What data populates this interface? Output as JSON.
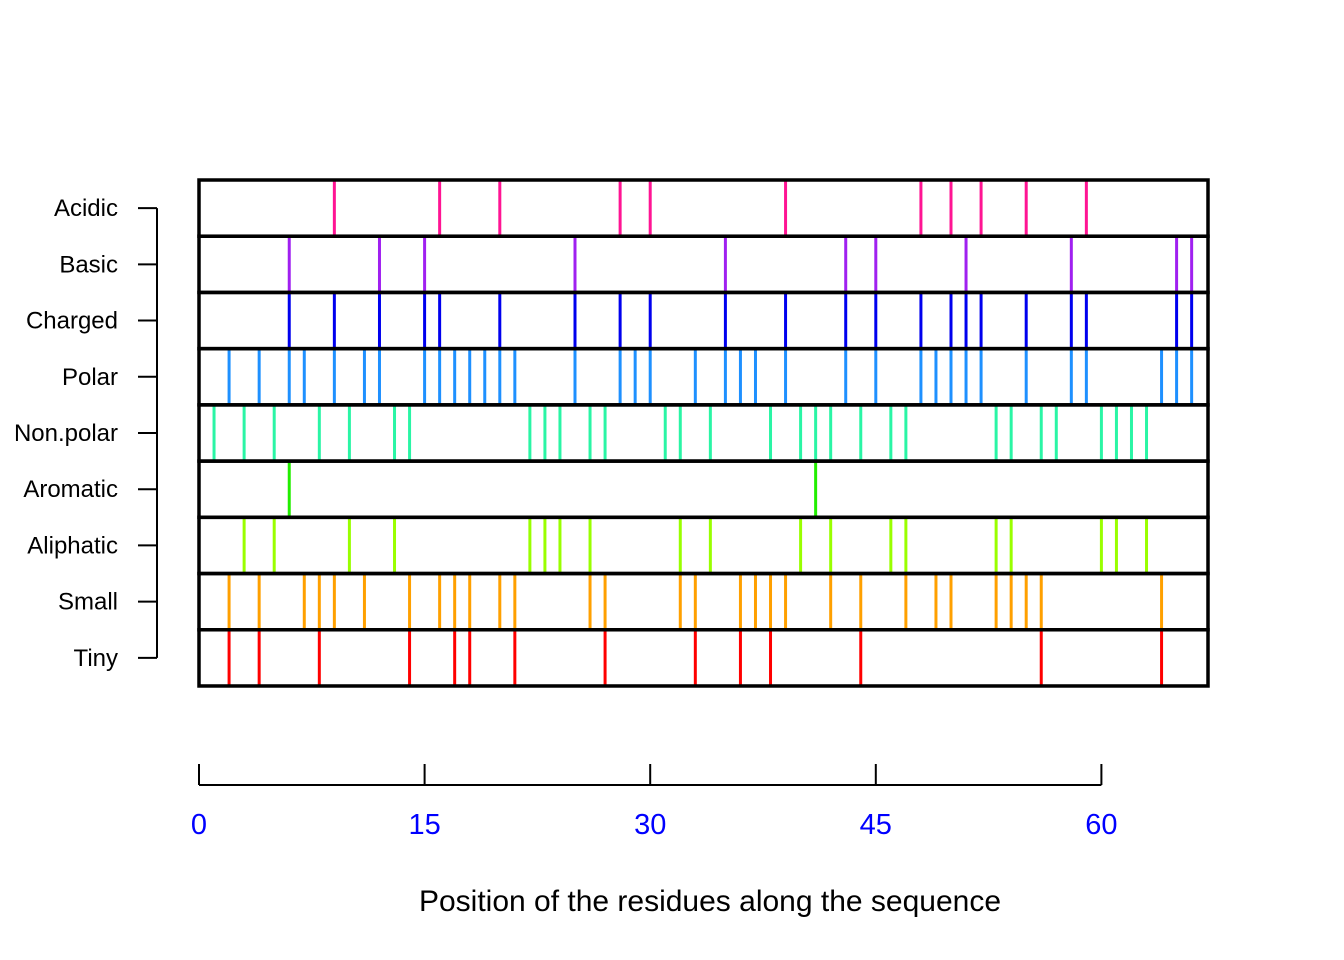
{
  "chart_data": {
    "type": "strip",
    "xlabel": "Position of the residues along the sequence",
    "xlim": [
      0,
      67
    ],
    "x_ticks": [
      0,
      15,
      30,
      45,
      60
    ],
    "x_tick_color": "#0000ff",
    "frame_color": "#000000",
    "series": [
      {
        "name": "Acidic",
        "color": "#ff1493",
        "positions": [
          9,
          16,
          20,
          28,
          30,
          39,
          48,
          50,
          52,
          55,
          59
        ]
      },
      {
        "name": "Basic",
        "color": "#a020f0",
        "positions": [
          6,
          12,
          15,
          25,
          35,
          43,
          45,
          51,
          58,
          65,
          66
        ]
      },
      {
        "name": "Charged",
        "color": "#0000ee",
        "positions": [
          6,
          9,
          12,
          15,
          16,
          20,
          25,
          28,
          30,
          35,
          39,
          43,
          45,
          48,
          50,
          51,
          52,
          55,
          58,
          59,
          65,
          66
        ]
      },
      {
        "name": "Polar",
        "color": "#1e90ff",
        "positions": [
          2,
          4,
          6,
          7,
          9,
          11,
          12,
          15,
          16,
          17,
          18,
          19,
          20,
          21,
          25,
          28,
          29,
          30,
          33,
          35,
          36,
          37,
          39,
          43,
          45,
          48,
          49,
          50,
          51,
          52,
          55,
          58,
          59,
          64,
          65,
          66
        ]
      },
      {
        "name": "Non.polar",
        "color": "#2af5a5",
        "positions": [
          1,
          3,
          5,
          8,
          10,
          13,
          14,
          22,
          23,
          24,
          26,
          27,
          31,
          32,
          34,
          38,
          40,
          41,
          42,
          44,
          46,
          47,
          53,
          54,
          56,
          57,
          60,
          61,
          62,
          63
        ]
      },
      {
        "name": "Aromatic",
        "color": "#22ee00",
        "positions": [
          6,
          41
        ]
      },
      {
        "name": "Aliphatic",
        "color": "#99ff00",
        "positions": [
          3,
          5,
          10,
          13,
          22,
          23,
          24,
          26,
          32,
          34,
          40,
          42,
          46,
          47,
          53,
          54,
          60,
          61,
          63
        ]
      },
      {
        "name": "Small",
        "color": "#ffa000",
        "positions": [
          2,
          4,
          7,
          8,
          9,
          11,
          14,
          16,
          17,
          18,
          20,
          21,
          26,
          27,
          32,
          33,
          36,
          37,
          38,
          39,
          42,
          44,
          47,
          49,
          50,
          53,
          54,
          55,
          56,
          64
        ]
      },
      {
        "name": "Tiny",
        "color": "#ff0000",
        "positions": [
          2,
          4,
          8,
          14,
          17,
          18,
          21,
          27,
          33,
          36,
          38,
          44,
          56,
          64
        ]
      }
    ]
  }
}
